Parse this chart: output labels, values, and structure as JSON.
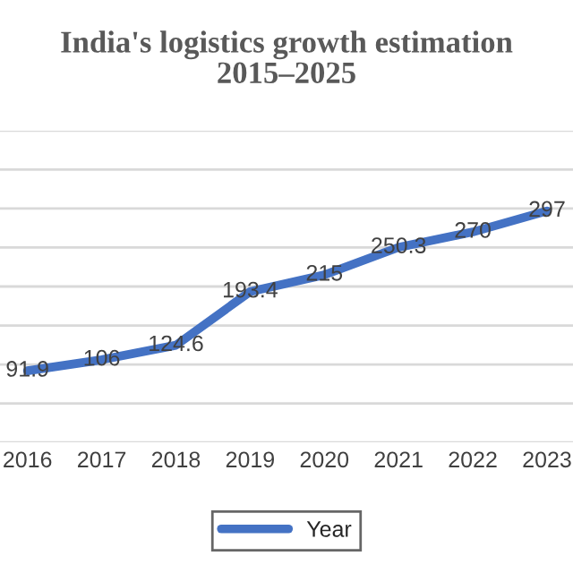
{
  "chart_data": {
    "type": "line",
    "title": "India's logistics growth estimation\n2015–2025",
    "categories": [
      "2016",
      "2017",
      "2018",
      "2019",
      "2020",
      "2021",
      "2022",
      "2023"
    ],
    "series": [
      {
        "name": "Year",
        "color": "#4472c4",
        "values": [
          91.9,
          106,
          124.6,
          193.4,
          215,
          250.3,
          270,
          297
        ]
      }
    ],
    "ylim": [
      0,
      400
    ],
    "yticks": [
      0,
      50,
      100,
      150,
      200,
      250,
      300,
      350,
      400
    ],
    "tick_labels": "x",
    "grid": "y",
    "legend": "bottom",
    "data_labels": true,
    "marker": "none",
    "line_style": "solid"
  }
}
